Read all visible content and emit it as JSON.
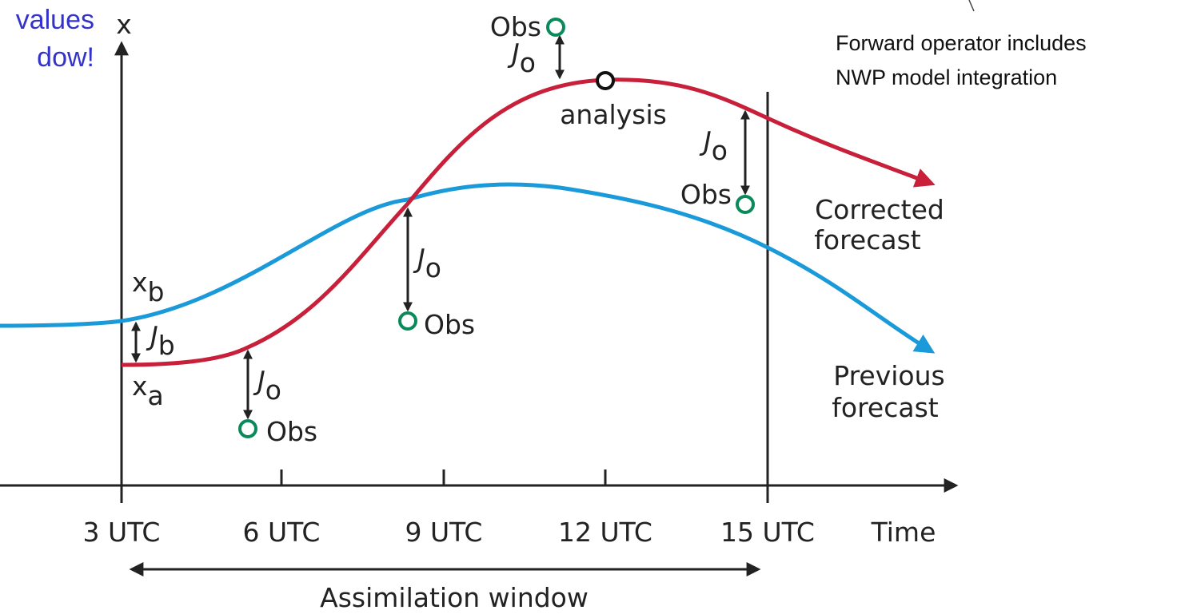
{
  "header_note": [
    "values",
    "dow!"
  ],
  "y_axis_label": "x",
  "x_axis_label": "Time",
  "x_ticks": [
    "3 UTC",
    "6 UTC",
    "9 UTC",
    "12 UTC",
    "15 UTC"
  ],
  "window_label": "Assimilation window",
  "note": [
    "Forward operator includes",
    "NWP model integration"
  ],
  "analysis_label": "analysis",
  "corrected_label": [
    "Corrected",
    "forecast"
  ],
  "previous_label": [
    "Previous",
    "forecast"
  ],
  "states": [
    {
      "main": "x",
      "sub": "b"
    },
    {
      "main": "x",
      "sub": "a"
    }
  ],
  "costs": [
    {
      "main": "J",
      "sub": "b"
    },
    {
      "main": "J",
      "sub": "o"
    },
    {
      "main": "J",
      "sub": "o"
    },
    {
      "main": "J",
      "sub": "o"
    },
    {
      "main": "J",
      "sub": "o"
    }
  ],
  "obs": [
    "Obs",
    "Obs",
    "Obs",
    "Obs"
  ]
}
